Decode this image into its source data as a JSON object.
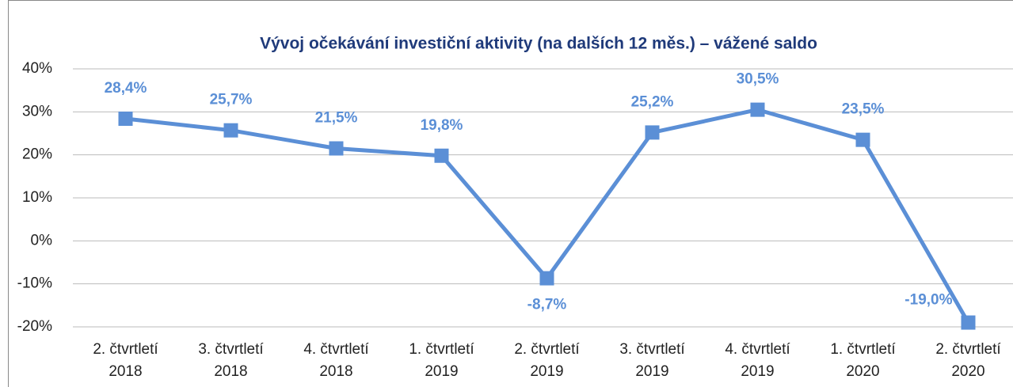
{
  "chart_data": {
    "type": "line",
    "title": "Vývoj očekávání investiční aktivity (na dalších 12 měs.) – vážené saldo",
    "categories": [
      "2. čtvrtletí 2018",
      "3. čtvrtletí 2018",
      "4. čtvrtletí 2018",
      "1. čtvrtletí 2019",
      "2. čtvrtletí 2019",
      "3. čtvrtletí 2019",
      "4. čtvrtletí 2019",
      "1. čtvrtletí 2020",
      "2. čtvrtletí 2020"
    ],
    "series": [
      {
        "name": "vážené saldo",
        "color": "#5b8fd6",
        "values": [
          28.4,
          25.7,
          21.5,
          19.8,
          -8.7,
          25.2,
          30.5,
          23.5,
          -19.0
        ],
        "value_labels": [
          "28,4%",
          "25,7%",
          "21,5%",
          "19,8%",
          "-8,7%",
          "25,2%",
          "30,5%",
          "23,5%",
          "-19,0%"
        ]
      }
    ],
    "ylim": [
      -20,
      40
    ],
    "yticks": [
      {
        "value": -20,
        "label": "-20%"
      },
      {
        "value": -10,
        "label": "-10%"
      },
      {
        "value": 0,
        "label": "0%"
      },
      {
        "value": 10,
        "label": "10%"
      },
      {
        "value": 20,
        "label": "20%"
      },
      {
        "value": 30,
        "label": "30%"
      },
      {
        "value": 40,
        "label": "40%"
      }
    ],
    "grid": true
  }
}
